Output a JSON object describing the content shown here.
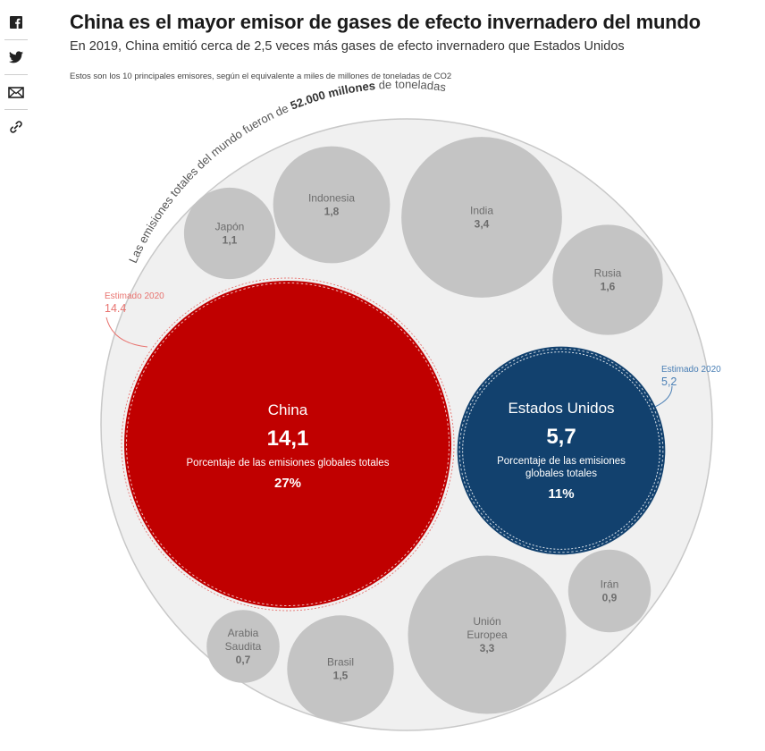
{
  "share": {
    "facebook": "facebook-icon",
    "twitter": "twitter-icon",
    "email": "email-icon",
    "link": "link-icon"
  },
  "title": "China es el mayor emisor de gases de efecto invernadero del mundo",
  "subtitle": "En 2019, China emitió cerca de 2,5 veces más gases de efecto invernadero que Estados Unidos",
  "note": "Estos son los 10 principales emisores, según el equivalente a miles de millones de toneladas de CO2",
  "chart_data": {
    "type": "bubble",
    "title": "China es el mayor emisor de gases de efecto invernadero del mundo",
    "unit": "miles de millones de toneladas de CO2",
    "total": {
      "prefix": "Las emisiones totales del mundo fueron de ",
      "value_label": "52.000 millones",
      "suffix": " de toneladas"
    },
    "highlight_caption": "Porcentaje de las emisiones globales totales",
    "items": [
      {
        "name": "China",
        "value": 14.1,
        "value_label": "14,1",
        "share_label": "27%",
        "estimate_label": "Estimado 2020",
        "estimate_value": "14.4",
        "color": "#c00000"
      },
      {
        "name": "Estados Unidos",
        "value": 5.7,
        "value_label": "5,7",
        "share_label": "11%",
        "estimate_label": "Estimado 2020",
        "estimate_value": "5,2",
        "color": "#12416e"
      },
      {
        "name": "India",
        "value": 3.4,
        "value_label": "3,4",
        "color": "#c4c4c4"
      },
      {
        "name": "Unión Europea",
        "value": 3.3,
        "value_label": "3,3",
        "color": "#c4c4c4"
      },
      {
        "name": "Indonesia",
        "value": 1.8,
        "value_label": "1,8",
        "color": "#c4c4c4"
      },
      {
        "name": "Rusia",
        "value": 1.6,
        "value_label": "1,6",
        "color": "#c4c4c4"
      },
      {
        "name": "Brasil",
        "value": 1.5,
        "value_label": "1,5",
        "color": "#c4c4c4"
      },
      {
        "name": "Japón",
        "value": 1.1,
        "value_label": "1,1",
        "color": "#c4c4c4"
      },
      {
        "name": "Irán",
        "value": 0.9,
        "value_label": "0,9",
        "color": "#c4c4c4"
      },
      {
        "name": "Arabia Saudita",
        "value": 0.7,
        "value_label": "0,7",
        "color": "#c4c4c4"
      }
    ],
    "colors": {
      "outer_fill": "#f0f0f0",
      "outer_stroke": "#c8c8c8",
      "estimate_china": "#e8736f",
      "estimate_us": "#4a7fb5",
      "gray_text": "#6d6d6d"
    }
  }
}
